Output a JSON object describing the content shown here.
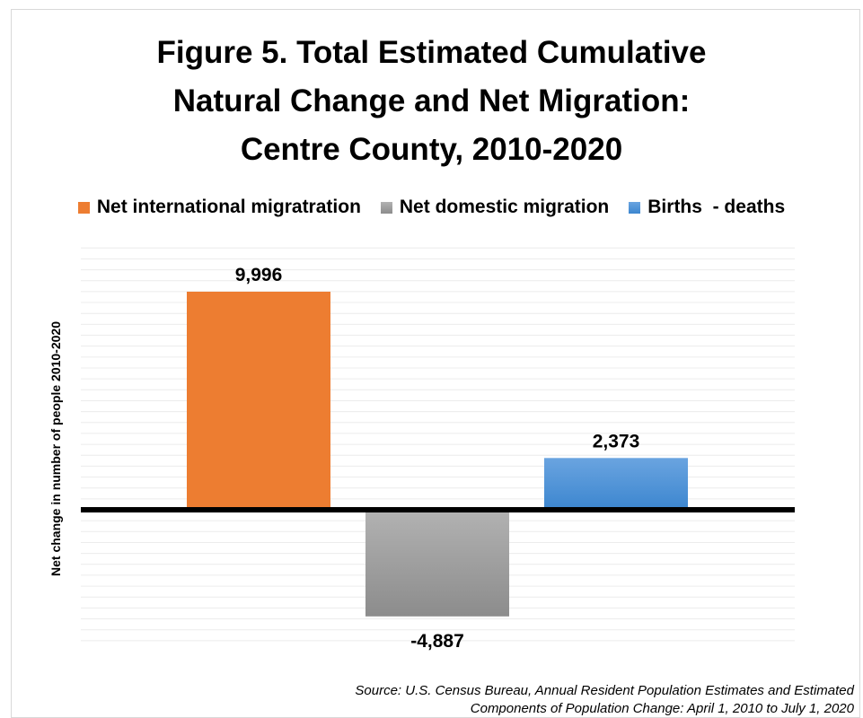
{
  "chart_data": {
    "type": "bar",
    "title_lines": [
      "Figure 5. Total Estimated Cumulative",
      "Natural Change and Net Migration:",
      "Centre County, 2010-2020"
    ],
    "ylabel": "Net change in number of people 2010-2020",
    "xlabel": "",
    "legend_position": "top",
    "gridlines": true,
    "ylim": [
      -6000,
      12000
    ],
    "series": [
      {
        "name": "Net international migratration",
        "value": 9996,
        "label": "9,996",
        "color": "#ED7D31",
        "color_dark": "#ED7D31"
      },
      {
        "name": "Net domestic migration",
        "value": -4887,
        "label": "-4,887",
        "color": "#B2B2B2",
        "color_dark": "#8C8C8C"
      },
      {
        "name": "Births  - deaths",
        "value": 2373,
        "label": "2,373",
        "color": "#6AA4E0",
        "color_dark": "#3C86CF"
      }
    ]
  },
  "source_lines": [
    "Source: U.S. Census Bureau, Annual Resident Population Estimates and Estimated",
    "Components of Population Change: April 1, 2010 to July 1, 2020"
  ]
}
